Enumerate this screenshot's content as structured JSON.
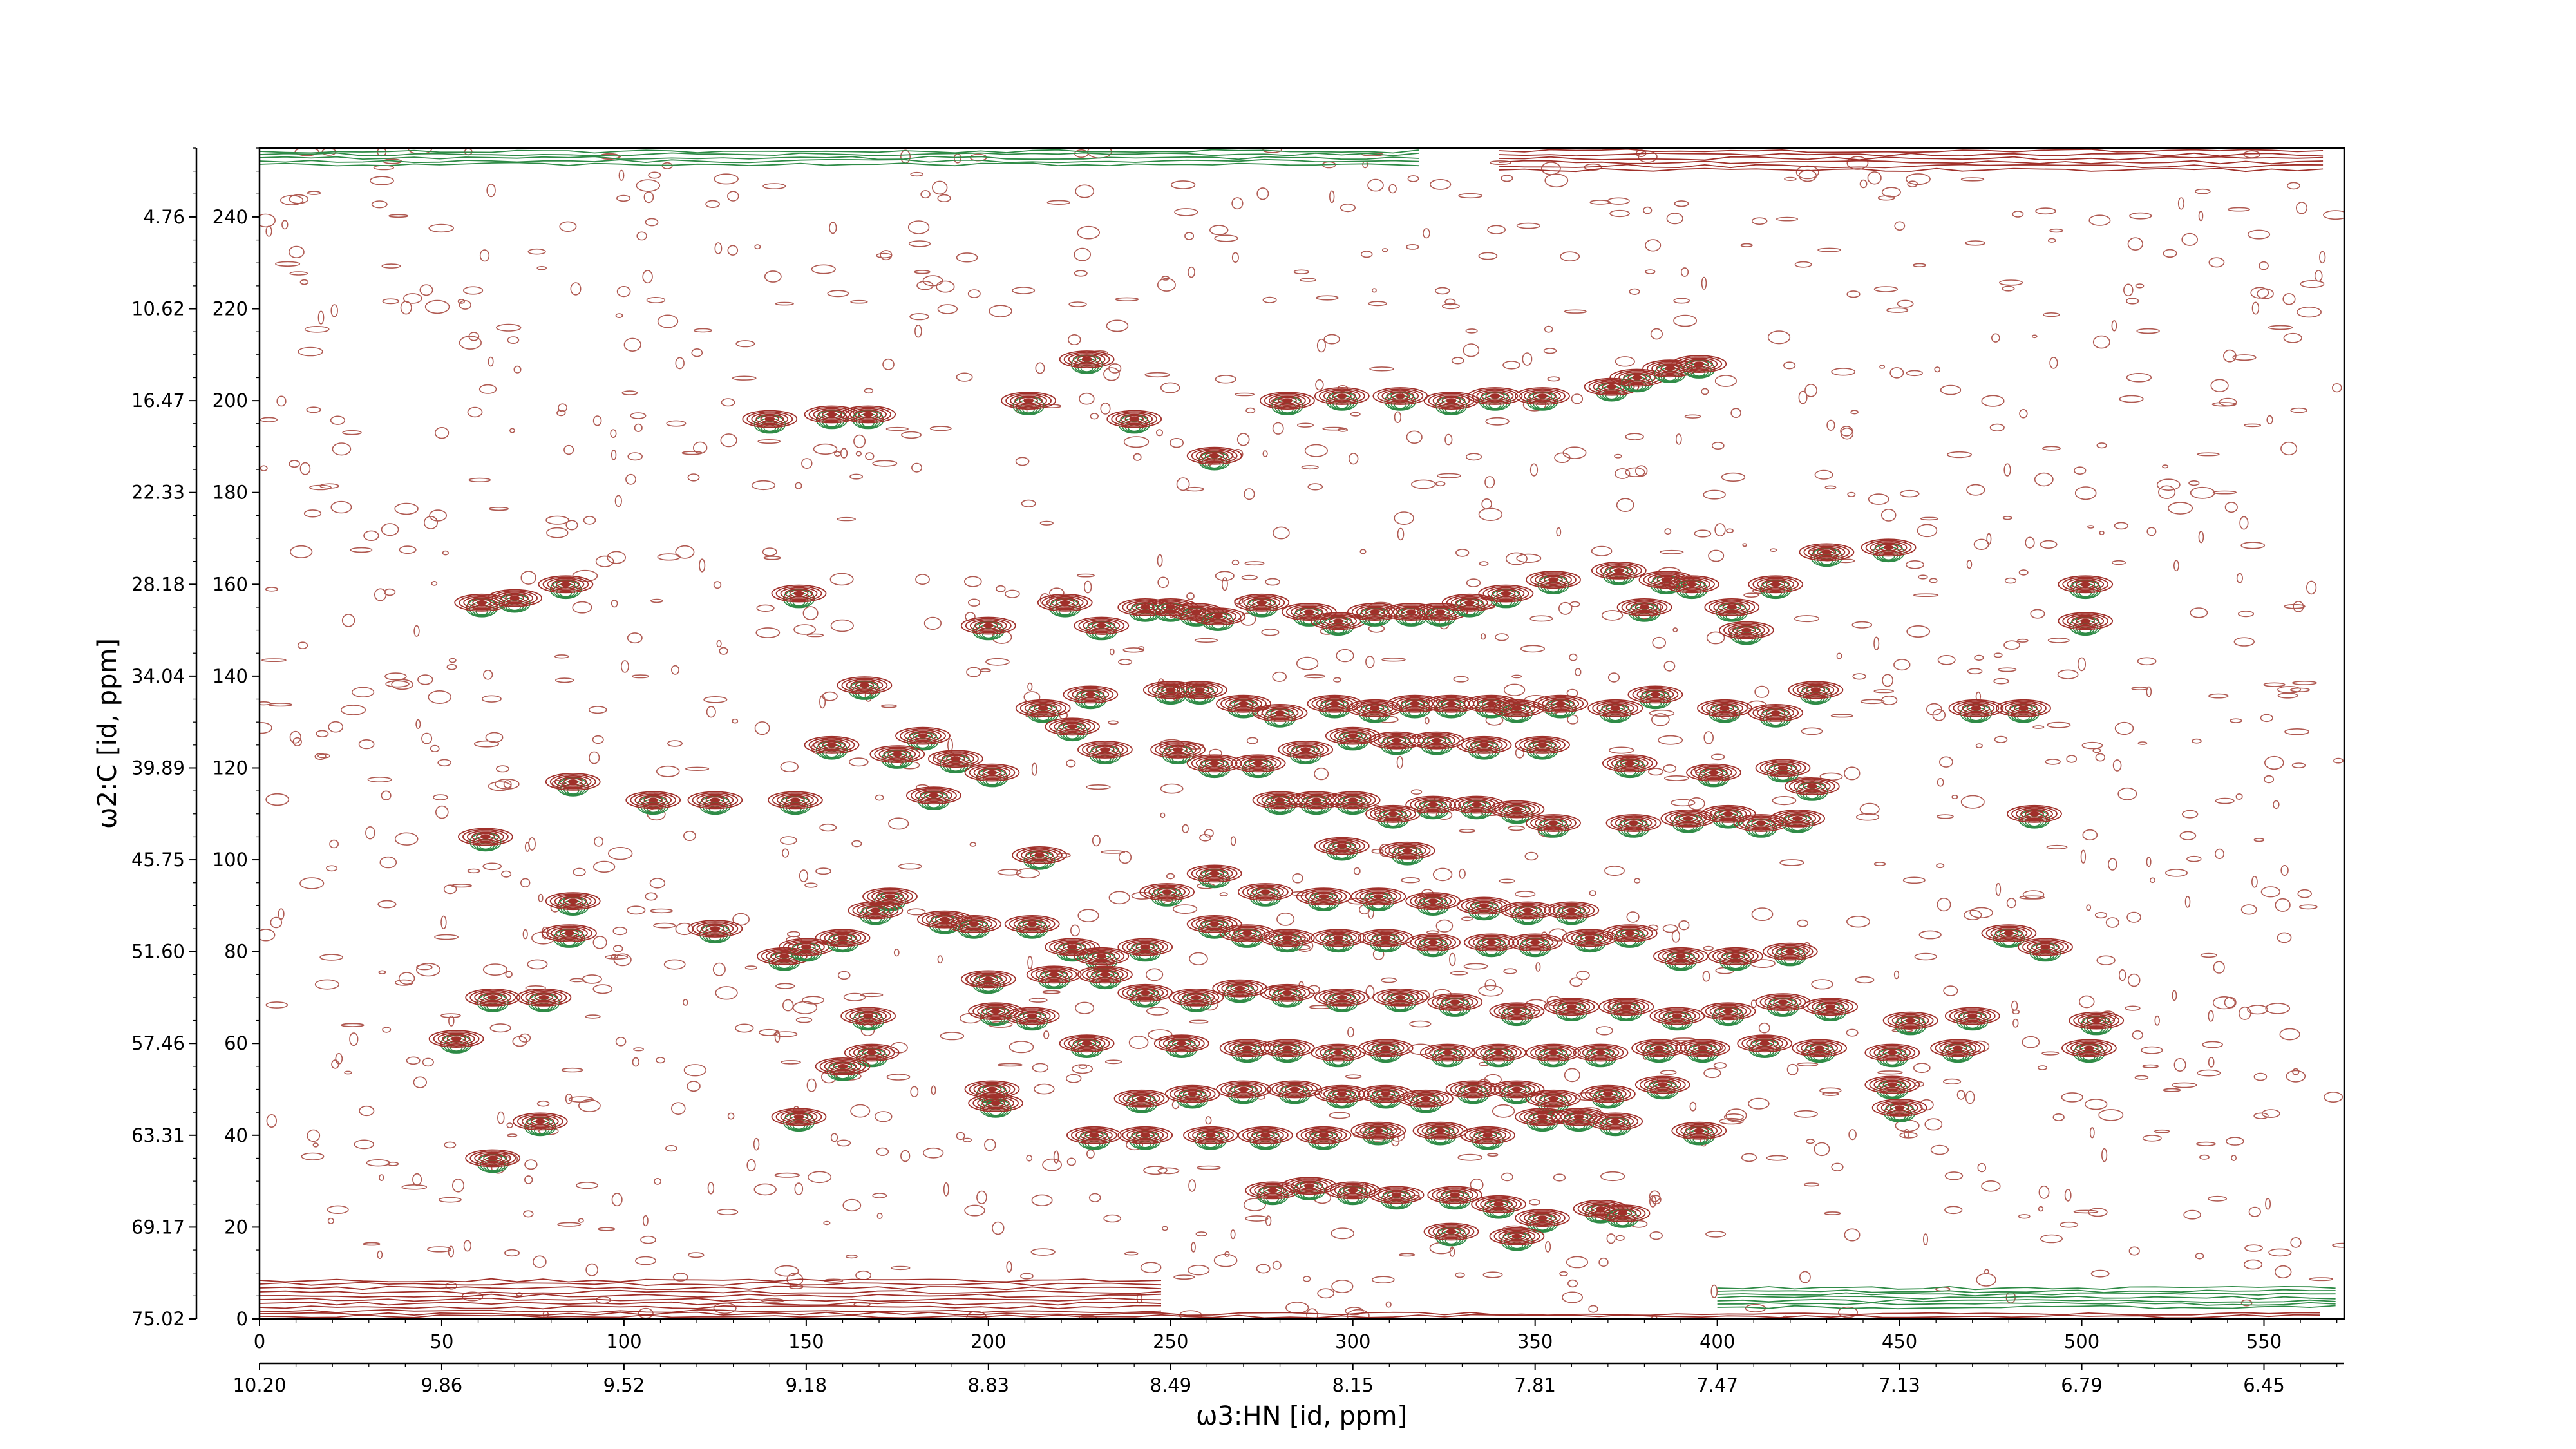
{
  "chart_data": {
    "type": "contour",
    "xlabel": "ω3:HN [id, ppm]",
    "ylabel": "ω2:C [id, ppm]",
    "x_index": {
      "ticks": [
        0,
        50,
        100,
        150,
        200,
        250,
        300,
        350,
        400,
        450,
        500,
        550
      ],
      "range": [
        0,
        572
      ]
    },
    "x_ppm": {
      "ticks": [
        "10.20",
        "9.86",
        "9.52",
        "9.18",
        "8.83",
        "8.49",
        "8.15",
        "7.81",
        "7.47",
        "7.13",
        "6.79",
        "6.45"
      ]
    },
    "y_index": {
      "ticks": [
        0,
        20,
        40,
        60,
        80,
        100,
        120,
        140,
        160,
        180,
        200,
        220,
        240
      ],
      "range": [
        0,
        255
      ]
    },
    "y_ppm": {
      "ticks": [
        "75.02",
        "69.17",
        "63.31",
        "57.46",
        "51.60",
        "45.75",
        "39.89",
        "34.04",
        "28.18",
        "22.33",
        "16.47",
        "10.62",
        "4.76"
      ]
    },
    "grid": false,
    "colors": {
      "positive": "#a0302a",
      "negative": "#2e8b46",
      "noise": "#b05a52"
    },
    "peaks": [
      [
        227,
        209
      ],
      [
        240,
        196
      ],
      [
        211,
        200
      ],
      [
        262,
        188
      ],
      [
        282,
        200
      ],
      [
        297,
        201
      ],
      [
        313,
        201
      ],
      [
        327,
        200
      ],
      [
        339,
        201
      ],
      [
        352,
        201
      ],
      [
        371,
        203
      ],
      [
        378,
        205
      ],
      [
        387,
        207
      ],
      [
        395,
        208
      ],
      [
        140,
        196
      ],
      [
        157,
        197
      ],
      [
        167,
        197
      ],
      [
        61,
        156
      ],
      [
        70,
        157
      ],
      [
        84,
        160
      ],
      [
        148,
        158
      ],
      [
        200,
        151
      ],
      [
        221,
        156
      ],
      [
        231,
        151
      ],
      [
        243,
        155
      ],
      [
        250,
        155
      ],
      [
        257,
        154
      ],
      [
        263,
        153
      ],
      [
        275,
        156
      ],
      [
        288,
        154
      ],
      [
        296,
        152
      ],
      [
        306,
        154
      ],
      [
        316,
        154
      ],
      [
        324,
        154
      ],
      [
        332,
        156
      ],
      [
        342,
        158
      ],
      [
        355,
        161
      ],
      [
        373,
        163
      ],
      [
        386,
        161
      ],
      [
        393,
        160
      ],
      [
        404,
        155
      ],
      [
        416,
        160
      ],
      [
        430,
        167
      ],
      [
        447,
        168
      ],
      [
        501,
        160
      ],
      [
        501,
        152
      ],
      [
        380,
        155
      ],
      [
        408,
        150
      ],
      [
        228,
        136
      ],
      [
        250,
        137
      ],
      [
        258,
        137
      ],
      [
        270,
        134
      ],
      [
        280,
        132
      ],
      [
        295,
        134
      ],
      [
        306,
        133
      ],
      [
        317,
        134
      ],
      [
        327,
        134
      ],
      [
        338,
        134
      ],
      [
        345,
        133
      ],
      [
        357,
        134
      ],
      [
        372,
        133
      ],
      [
        383,
        136
      ],
      [
        402,
        133
      ],
      [
        416,
        132
      ],
      [
        427,
        137
      ],
      [
        471,
        133
      ],
      [
        484,
        133
      ],
      [
        166,
        138
      ],
      [
        215,
        133
      ],
      [
        223,
        129
      ],
      [
        232,
        124
      ],
      [
        182,
        127
      ],
      [
        157,
        125
      ],
      [
        175,
        123
      ],
      [
        191,
        122
      ],
      [
        201,
        119
      ],
      [
        252,
        124
      ],
      [
        262,
        121
      ],
      [
        274,
        121
      ],
      [
        287,
        124
      ],
      [
        300,
        127
      ],
      [
        312,
        126
      ],
      [
        323,
        126
      ],
      [
        336,
        125
      ],
      [
        352,
        125
      ],
      [
        376,
        121
      ],
      [
        399,
        119
      ],
      [
        418,
        120
      ],
      [
        426,
        116
      ],
      [
        86,
        117
      ],
      [
        108,
        113
      ],
      [
        125,
        113
      ],
      [
        147,
        113
      ],
      [
        185,
        114
      ],
      [
        280,
        113
      ],
      [
        290,
        113
      ],
      [
        300,
        113
      ],
      [
        311,
        110
      ],
      [
        322,
        112
      ],
      [
        334,
        112
      ],
      [
        345,
        111
      ],
      [
        355,
        108
      ],
      [
        377,
        108
      ],
      [
        392,
        109
      ],
      [
        403,
        110
      ],
      [
        412,
        108
      ],
      [
        422,
        109
      ],
      [
        487,
        110
      ],
      [
        62,
        105
      ],
      [
        214,
        101
      ],
      [
        297,
        103
      ],
      [
        315,
        102
      ],
      [
        86,
        91
      ],
      [
        262,
        97
      ],
      [
        249,
        93
      ],
      [
        276,
        93
      ],
      [
        292,
        92
      ],
      [
        307,
        92
      ],
      [
        322,
        91
      ],
      [
        336,
        90
      ],
      [
        348,
        89
      ],
      [
        360,
        89
      ],
      [
        173,
        92
      ],
      [
        169,
        89
      ],
      [
        188,
        87
      ],
      [
        85,
        84
      ],
      [
        125,
        85
      ],
      [
        144,
        79
      ],
      [
        150,
        81
      ],
      [
        160,
        83
      ],
      [
        196,
        86
      ],
      [
        212,
        86
      ],
      [
        223,
        81
      ],
      [
        231,
        79
      ],
      [
        243,
        81
      ],
      [
        262,
        86
      ],
      [
        271,
        84
      ],
      [
        282,
        83
      ],
      [
        296,
        83
      ],
      [
        309,
        83
      ],
      [
        322,
        82
      ],
      [
        338,
        82
      ],
      [
        350,
        82
      ],
      [
        365,
        83
      ],
      [
        376,
        84
      ],
      [
        390,
        79
      ],
      [
        405,
        79
      ],
      [
        420,
        80
      ],
      [
        480,
        84
      ],
      [
        490,
        81
      ],
      [
        64,
        70
      ],
      [
        78,
        70
      ],
      [
        167,
        66
      ],
      [
        200,
        74
      ],
      [
        202,
        67
      ],
      [
        212,
        66
      ],
      [
        218,
        75
      ],
      [
        232,
        75
      ],
      [
        243,
        71
      ],
      [
        257,
        70
      ],
      [
        269,
        72
      ],
      [
        282,
        71
      ],
      [
        297,
        70
      ],
      [
        313,
        70
      ],
      [
        328,
        69
      ],
      [
        345,
        67
      ],
      [
        360,
        68
      ],
      [
        375,
        68
      ],
      [
        389,
        66
      ],
      [
        403,
        67
      ],
      [
        418,
        69
      ],
      [
        431,
        68
      ],
      [
        453,
        65
      ],
      [
        470,
        66
      ],
      [
        504,
        65
      ],
      [
        54,
        61
      ],
      [
        168,
        58
      ],
      [
        160,
        55
      ],
      [
        227,
        60
      ],
      [
        253,
        60
      ],
      [
        271,
        59
      ],
      [
        282,
        59
      ],
      [
        296,
        58
      ],
      [
        309,
        59
      ],
      [
        326,
        58
      ],
      [
        340,
        58
      ],
      [
        355,
        58
      ],
      [
        368,
        58
      ],
      [
        384,
        59
      ],
      [
        396,
        59
      ],
      [
        413,
        60
      ],
      [
        428,
        59
      ],
      [
        448,
        58
      ],
      [
        466,
        59
      ],
      [
        502,
        59
      ],
      [
        448,
        51
      ],
      [
        450,
        46
      ],
      [
        201,
        50
      ],
      [
        202,
        47
      ],
      [
        242,
        48
      ],
      [
        256,
        49
      ],
      [
        270,
        50
      ],
      [
        284,
        50
      ],
      [
        297,
        49
      ],
      [
        309,
        49
      ],
      [
        320,
        48
      ],
      [
        333,
        50
      ],
      [
        345,
        50
      ],
      [
        355,
        48
      ],
      [
        370,
        49
      ],
      [
        385,
        51
      ],
      [
        148,
        44
      ],
      [
        77,
        43
      ],
      [
        229,
        40
      ],
      [
        243,
        40
      ],
      [
        261,
        40
      ],
      [
        276,
        40
      ],
      [
        292,
        40
      ],
      [
        307,
        41
      ],
      [
        324,
        41
      ],
      [
        337,
        40
      ],
      [
        352,
        44
      ],
      [
        362,
        44
      ],
      [
        372,
        43
      ],
      [
        395,
        41
      ],
      [
        64,
        35
      ],
      [
        278,
        28
      ],
      [
        288,
        29
      ],
      [
        300,
        28
      ],
      [
        312,
        27
      ],
      [
        328,
        27
      ],
      [
        340,
        25
      ],
      [
        352,
        22
      ],
      [
        368,
        24
      ],
      [
        374,
        23
      ],
      [
        327,
        19
      ],
      [
        345,
        18
      ]
    ]
  }
}
